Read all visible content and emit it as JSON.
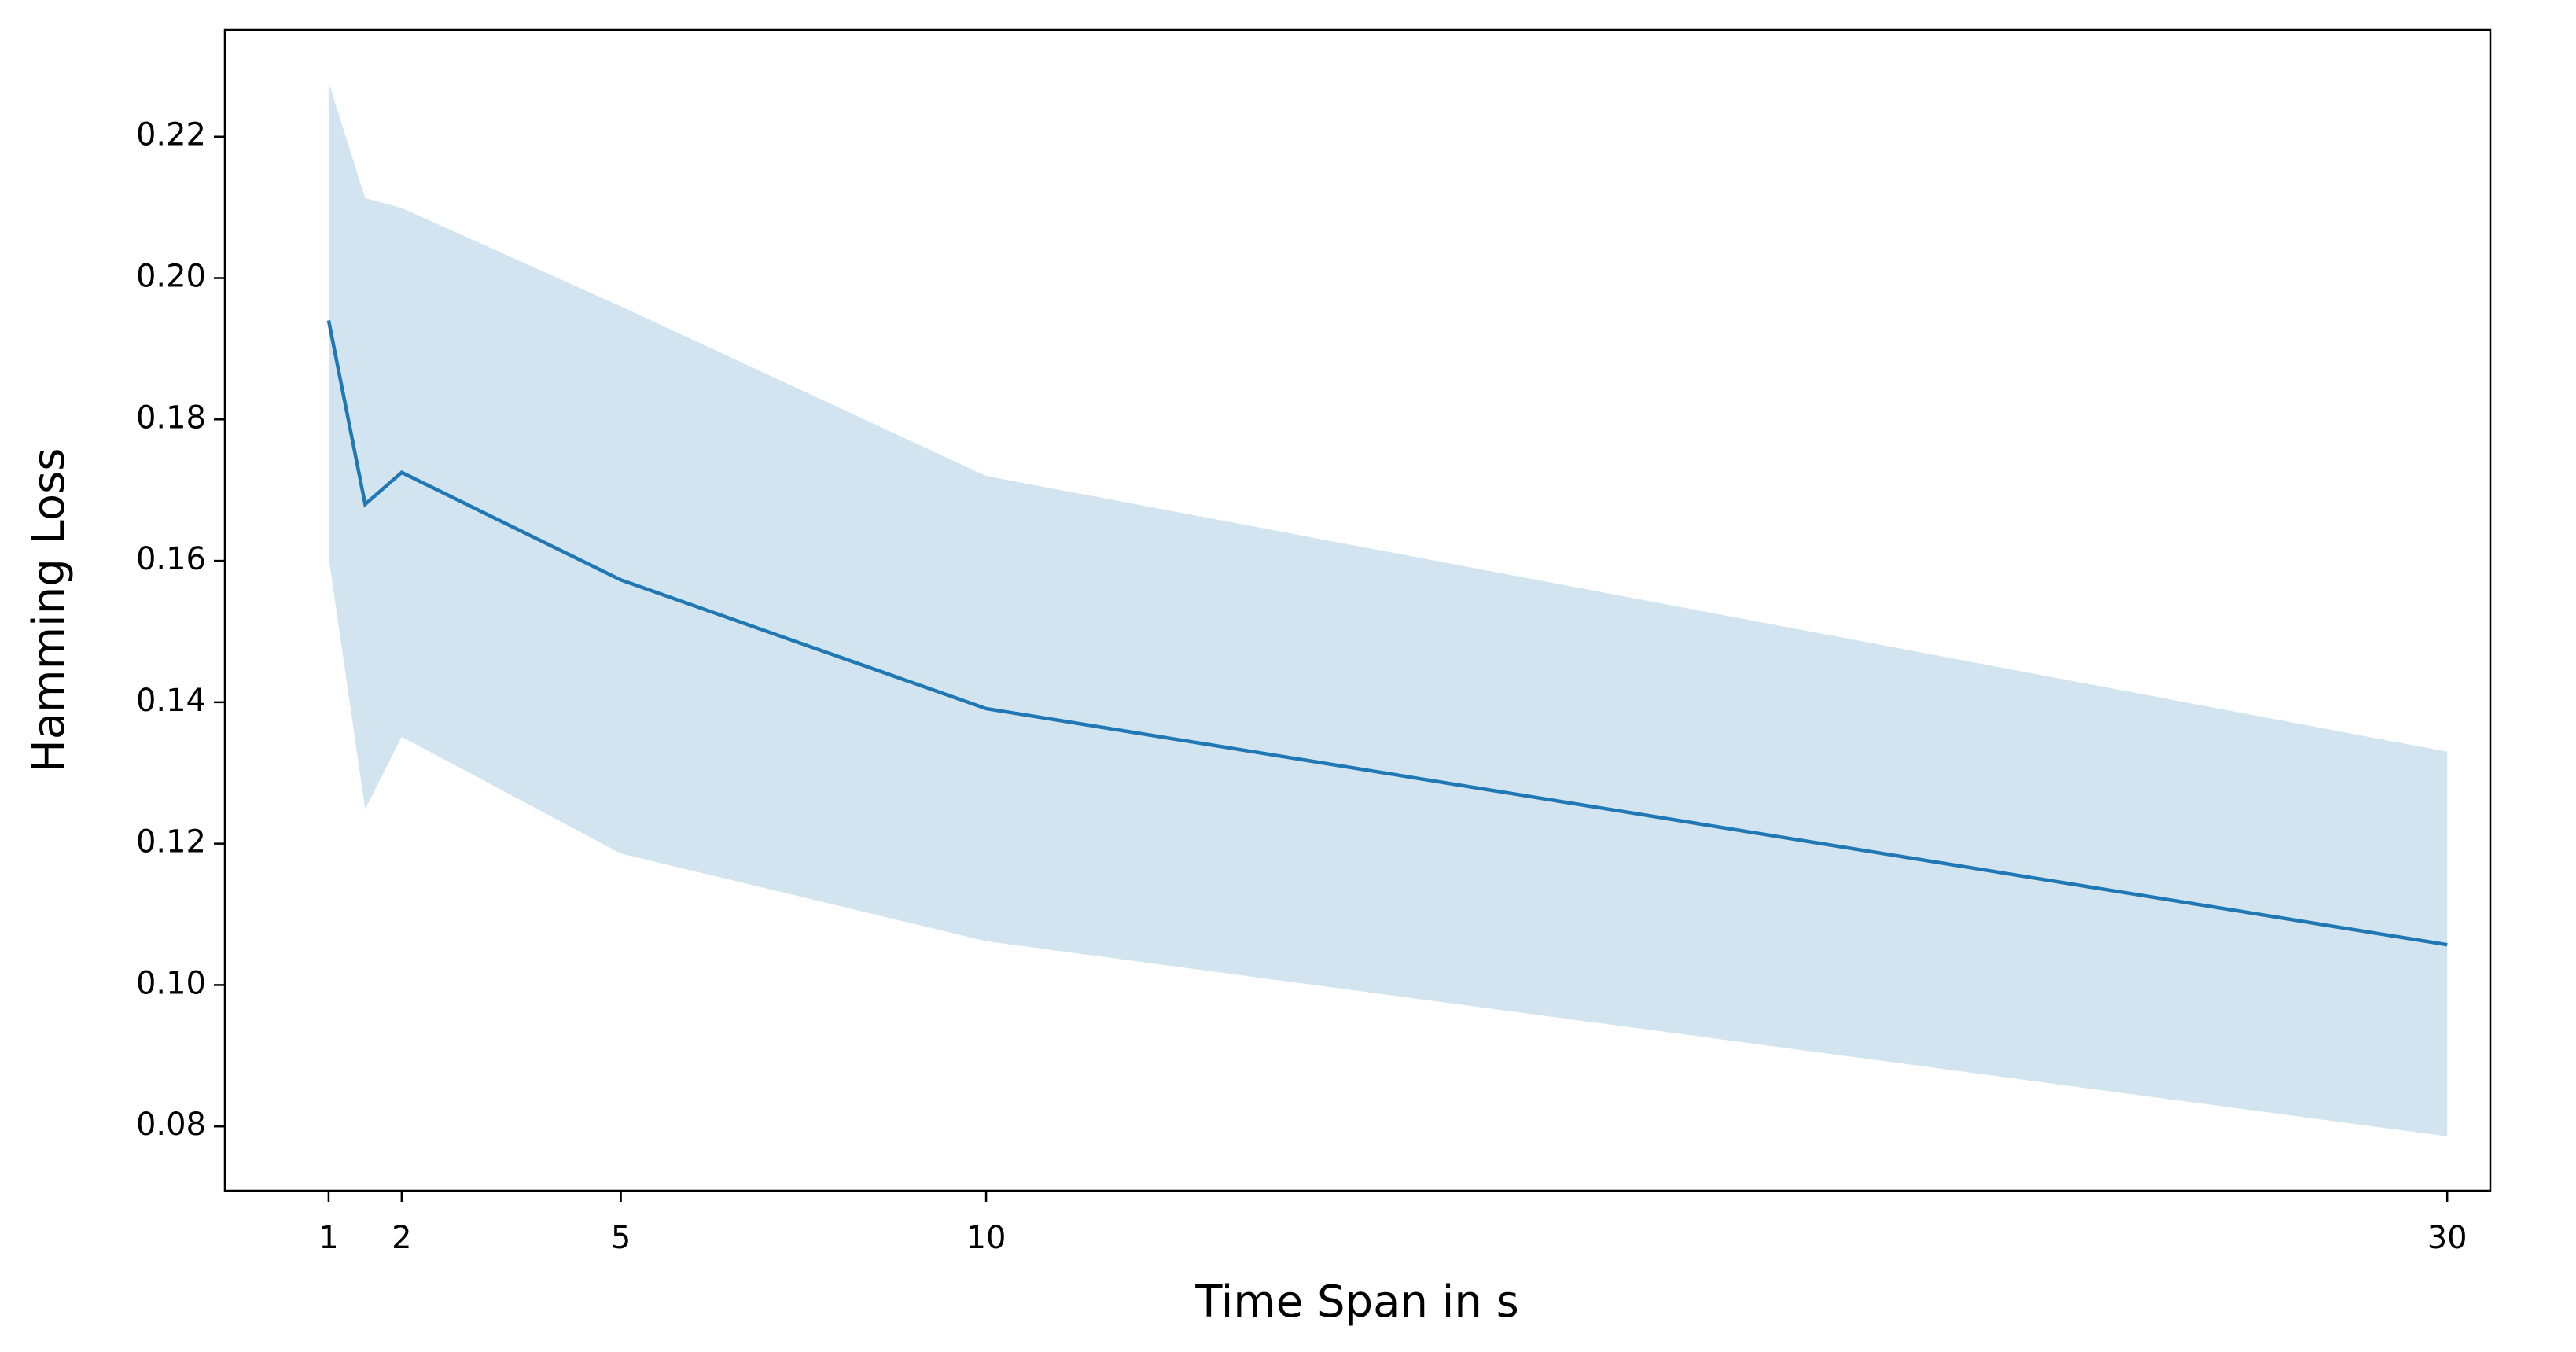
{
  "chart_data": {
    "type": "line",
    "x_label": "Time Span in s",
    "y_label": "Hamming Loss",
    "x": [
      1,
      1.5,
      2,
      5,
      10,
      30
    ],
    "series": [
      {
        "color": "#1f77b4",
        "values": [
          0.194,
          0.168,
          0.1725,
          0.1573,
          0.1391,
          0.1057
        ],
        "upper": [
          0.2277,
          0.2113,
          0.2099,
          0.196,
          0.172,
          0.133
        ],
        "lower": [
          0.1606,
          0.1249,
          0.1351,
          0.1186,
          0.1062,
          0.0786
        ],
        "band_opacity": 0.2
      }
    ],
    "xlim": [
      -0.42,
      30.59
    ],
    "ylim": [
      0.0709,
      0.2351
    ],
    "xticks": [
      1,
      2,
      5,
      10,
      30
    ],
    "yticks": [
      0.08,
      {
        "value": 0.1,
        "label": "0.10"
      },
      0.12,
      0.14,
      0.16,
      0.18,
      {
        "value": 0.2,
        "label": "0.20"
      },
      0.22
    ],
    "grid": false
  }
}
